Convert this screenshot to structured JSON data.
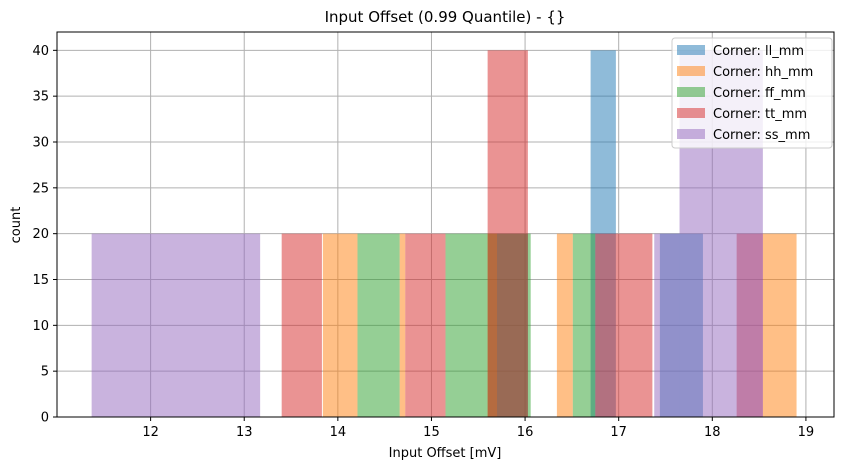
{
  "chart_data": {
    "type": "bar",
    "subtype": "overlapping-histogram",
    "title": "Input Offset (0.99 Quantile) - {}",
    "xlabel": "Input Offset [mV]",
    "ylabel": "count",
    "xlim": [
      11.0,
      19.3
    ],
    "ylim": [
      0,
      42
    ],
    "xticks": [
      12,
      13,
      14,
      15,
      16,
      17,
      18,
      19
    ],
    "yticks": [
      0,
      5,
      10,
      15,
      20,
      25,
      30,
      35,
      40
    ],
    "grid": true,
    "legend_position": "upper right",
    "alpha": 0.5,
    "series": [
      {
        "name": "Corner: ll_mm",
        "color": "#1f77b4",
        "bins": [
          [
            15.7,
            16.03,
            20
          ],
          [
            16.7,
            16.97,
            40
          ],
          [
            17.44,
            17.9,
            20
          ]
        ]
      },
      {
        "name": "Corner: hh_mm",
        "color": "#ff7f0e",
        "bins": [
          [
            13.84,
            14.21,
            20
          ],
          [
            14.66,
            14.72,
            20
          ],
          [
            15.6,
            15.7,
            20
          ],
          [
            16.34,
            16.51,
            20
          ],
          [
            18.54,
            18.9,
            20
          ]
        ]
      },
      {
        "name": "Corner: ff_mm",
        "color": "#2ca02c",
        "bins": [
          [
            14.21,
            14.66,
            20
          ],
          [
            15.15,
            15.6,
            20
          ],
          [
            15.6,
            16.06,
            20
          ],
          [
            16.51,
            16.75,
            20
          ]
        ]
      },
      {
        "name": "Corner: tt_mm",
        "color": "#d62728",
        "bins": [
          [
            13.4,
            13.83,
            20
          ],
          [
            14.72,
            15.15,
            20
          ],
          [
            15.6,
            16.03,
            40
          ],
          [
            16.75,
            17.36,
            20
          ],
          [
            18.26,
            18.54,
            20
          ]
        ]
      },
      {
        "name": "Corner: ss_mm",
        "color": "#9467bd",
        "bins": [
          [
            11.37,
            13.17,
            20
          ],
          [
            17.38,
            17.65,
            20
          ],
          [
            17.65,
            18.54,
            40
          ]
        ]
      }
    ]
  },
  "legend": {
    "items": [
      {
        "label": "Corner: ll_mm"
      },
      {
        "label": "Corner: hh_mm"
      },
      {
        "label": "Corner: ff_mm"
      },
      {
        "label": "Corner: tt_mm"
      },
      {
        "label": "Corner: ss_mm"
      }
    ]
  }
}
